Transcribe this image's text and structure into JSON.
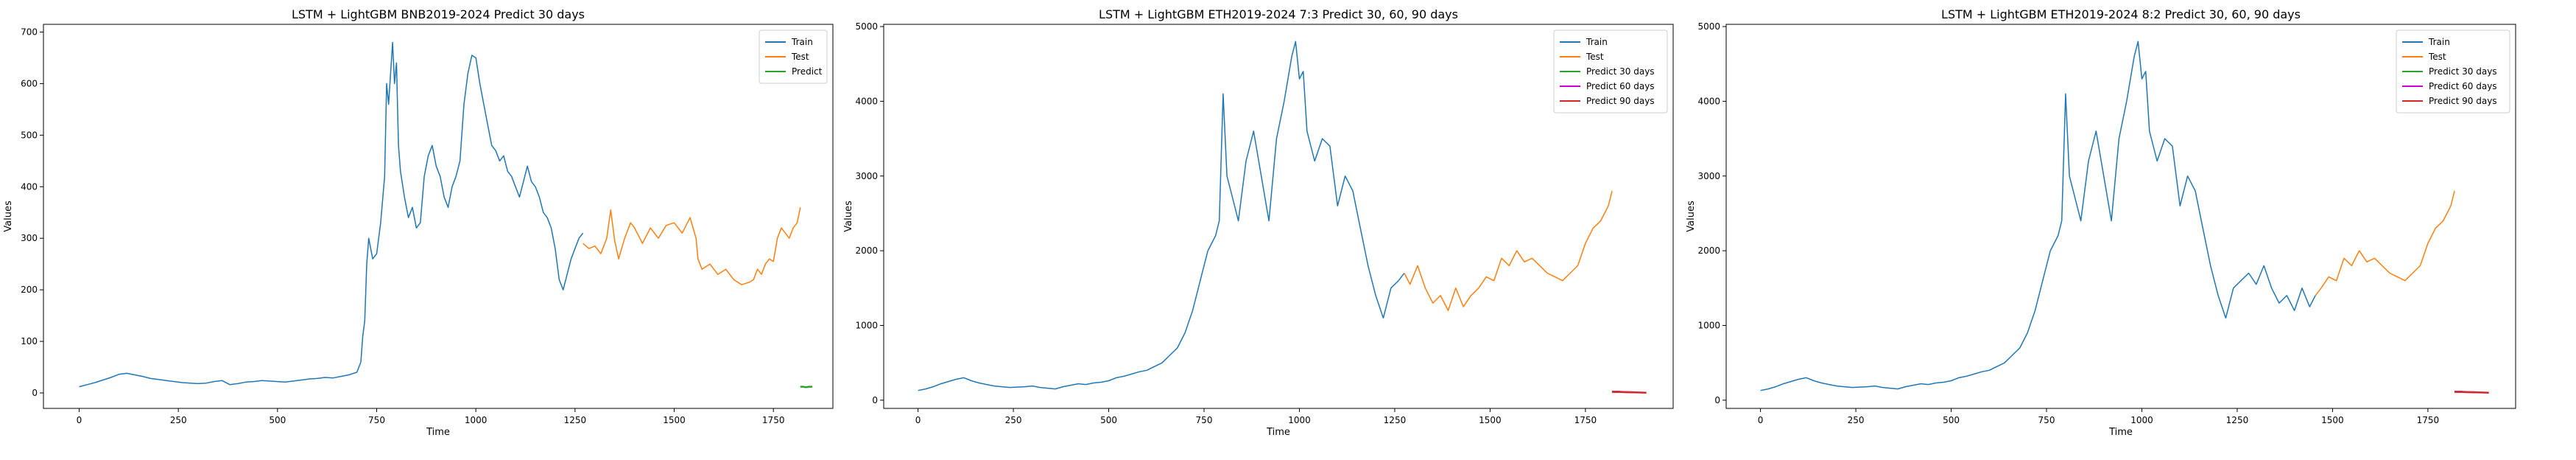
{
  "chart_data": [
    {
      "type": "line",
      "title": "LSTM + LightGBM BNB2019-2024 Predict 30 days",
      "xlabel": "Time",
      "ylabel": "Values",
      "xlim": [
        -90,
        1900
      ],
      "ylim": [
        -30,
        715
      ],
      "xticks": [
        0,
        250,
        500,
        750,
        1000,
        1250,
        1500,
        1750
      ],
      "yticks": [
        0,
        100,
        200,
        300,
        400,
        500,
        600,
        700
      ],
      "legend": "top-right",
      "series": [
        {
          "name": "Train",
          "color": "#1f77b4",
          "x": [
            0,
            20,
            40,
            60,
            80,
            100,
            120,
            140,
            160,
            180,
            200,
            220,
            240,
            260,
            280,
            300,
            320,
            340,
            360,
            380,
            400,
            420,
            440,
            460,
            480,
            500,
            520,
            540,
            560,
            580,
            600,
            620,
            640,
            660,
            680,
            700,
            710,
            715,
            720,
            725,
            730,
            740,
            750,
            760,
            770,
            775,
            780,
            790,
            795,
            800,
            805,
            810,
            820,
            830,
            840,
            850,
            860,
            870,
            880,
            890,
            900,
            910,
            920,
            930,
            940,
            950,
            960,
            970,
            980,
            990,
            1000,
            1010,
            1020,
            1030,
            1040,
            1050,
            1060,
            1070,
            1080,
            1090,
            1100,
            1110,
            1120,
            1130,
            1140,
            1150,
            1160,
            1170,
            1180,
            1190,
            1200,
            1210,
            1220,
            1230,
            1240,
            1250,
            1260,
            1270
          ],
          "y": [
            12,
            16,
            20,
            25,
            30,
            36,
            38,
            35,
            32,
            28,
            26,
            24,
            22,
            20,
            19,
            18,
            19,
            22,
            24,
            16,
            18,
            21,
            22,
            24,
            23,
            22,
            21,
            23,
            25,
            27,
            28,
            30,
            29,
            32,
            35,
            40,
            60,
            110,
            140,
            250,
            300,
            260,
            270,
            330,
            420,
            600,
            560,
            680,
            600,
            640,
            480,
            430,
            380,
            340,
            360,
            320,
            330,
            420,
            460,
            480,
            440,
            420,
            380,
            360,
            400,
            420,
            450,
            560,
            620,
            655,
            650,
            600,
            560,
            520,
            480,
            470,
            450,
            460,
            430,
            420,
            400,
            380,
            410,
            440,
            410,
            400,
            380,
            350,
            340,
            320,
            280,
            220,
            200,
            230,
            260,
            280,
            300,
            310
          ]
        },
        {
          "name": "Test",
          "color": "#ff7f0e",
          "x": [
            1270,
            1285,
            1300,
            1315,
            1330,
            1340,
            1350,
            1360,
            1375,
            1390,
            1400,
            1420,
            1440,
            1460,
            1480,
            1500,
            1520,
            1540,
            1555,
            1560,
            1570,
            1590,
            1610,
            1630,
            1650,
            1670,
            1690,
            1700,
            1710,
            1720,
            1730,
            1740,
            1750,
            1760,
            1770,
            1780,
            1790,
            1800,
            1810,
            1818
          ],
          "y": [
            290,
            280,
            285,
            270,
            300,
            355,
            295,
            260,
            300,
            330,
            320,
            290,
            320,
            300,
            325,
            330,
            310,
            340,
            300,
            260,
            240,
            250,
            230,
            240,
            220,
            210,
            215,
            220,
            240,
            230,
            250,
            260,
            255,
            300,
            320,
            310,
            300,
            320,
            330,
            360
          ]
        },
        {
          "name": "Predict",
          "color": "#2ca02c",
          "x": [
            1818,
            1825,
            1832,
            1840,
            1848
          ],
          "y": [
            12,
            12,
            11,
            12,
            12
          ]
        }
      ]
    },
    {
      "type": "line",
      "title": "LSTM + LightGBM ETH2019-2024 7:3 Predict 30, 60, 90 days",
      "xlabel": "Time",
      "ylabel": "Values",
      "xlim": [
        -90,
        1980
      ],
      "ylim": [
        -110,
        5030
      ],
      "xticks": [
        0,
        250,
        500,
        750,
        1000,
        1250,
        1500,
        1750
      ],
      "yticks": [
        0,
        1000,
        2000,
        3000,
        4000,
        5000
      ],
      "legend": "top-right",
      "series": [
        {
          "name": "Train",
          "color": "#1f77b4",
          "x": [
            0,
            20,
            40,
            60,
            80,
            100,
            120,
            140,
            160,
            180,
            200,
            220,
            240,
            260,
            280,
            300,
            320,
            340,
            360,
            380,
            400,
            420,
            440,
            460,
            480,
            500,
            520,
            540,
            560,
            580,
            600,
            620,
            640,
            660,
            680,
            700,
            720,
            740,
            760,
            780,
            790,
            800,
            810,
            820,
            840,
            860,
            880,
            900,
            920,
            940,
            960,
            980,
            990,
            1000,
            1010,
            1020,
            1040,
            1060,
            1080,
            1100,
            1120,
            1140,
            1160,
            1180,
            1200,
            1220,
            1240,
            1260,
            1275
          ],
          "y": [
            130,
            150,
            180,
            220,
            250,
            280,
            300,
            260,
            230,
            210,
            190,
            180,
            170,
            175,
            180,
            190,
            170,
            160,
            150,
            180,
            200,
            220,
            210,
            230,
            240,
            260,
            300,
            320,
            350,
            380,
            400,
            450,
            500,
            600,
            700,
            900,
            1200,
            1600,
            2000,
            2200,
            2400,
            4100,
            3000,
            2800,
            2400,
            3200,
            3600,
            3000,
            2400,
            3500,
            4000,
            4600,
            4800,
            4300,
            4400,
            3600,
            3200,
            3500,
            3400,
            2600,
            3000,
            2800,
            2300,
            1800,
            1400,
            1100,
            1500,
            1600,
            1700
          ]
        },
        {
          "name": "Test",
          "color": "#ff7f0e",
          "x": [
            1275,
            1290,
            1310,
            1330,
            1350,
            1370,
            1390,
            1410,
            1430,
            1450,
            1470,
            1490,
            1510,
            1530,
            1550,
            1570,
            1590,
            1610,
            1630,
            1650,
            1670,
            1690,
            1710,
            1730,
            1750,
            1770,
            1790,
            1810,
            1820
          ],
          "y": [
            1700,
            1550,
            1800,
            1500,
            1300,
            1400,
            1200,
            1500,
            1250,
            1400,
            1500,
            1650,
            1600,
            1900,
            1800,
            2000,
            1850,
            1900,
            1800,
            1700,
            1650,
            1600,
            1700,
            1800,
            2100,
            2300,
            2400,
            2600,
            2800
          ]
        },
        {
          "name": "Predict 30 days",
          "color": "#2ca02c",
          "x": [
            1820,
            1835,
            1850
          ],
          "y": [
            110,
            115,
            108
          ]
        },
        {
          "name": "Predict 60 days",
          "color": "#cc00cc",
          "x": [
            1820,
            1845,
            1880
          ],
          "y": [
            115,
            110,
            105
          ]
        },
        {
          "name": "Predict 90 days",
          "color": "#d62728",
          "x": [
            1820,
            1850,
            1880,
            1910
          ],
          "y": [
            112,
            108,
            104,
            100
          ]
        }
      ]
    },
    {
      "type": "line",
      "title": "LSTM + LightGBM ETH2019-2024 8:2 Predict 30, 60, 90 days",
      "xlabel": "Time",
      "ylabel": "Values",
      "xlim": [
        -90,
        1980
      ],
      "ylim": [
        -110,
        5030
      ],
      "xticks": [
        0,
        250,
        500,
        750,
        1000,
        1250,
        1500,
        1750
      ],
      "yticks": [
        0,
        1000,
        2000,
        3000,
        4000,
        5000
      ],
      "legend": "top-right",
      "series": [
        {
          "name": "Train",
          "color": "#1f77b4",
          "x": [
            0,
            20,
            40,
            60,
            80,
            100,
            120,
            140,
            160,
            180,
            200,
            220,
            240,
            260,
            280,
            300,
            320,
            340,
            360,
            380,
            400,
            420,
            440,
            460,
            480,
            500,
            520,
            540,
            560,
            580,
            600,
            620,
            640,
            660,
            680,
            700,
            720,
            740,
            760,
            780,
            790,
            800,
            810,
            820,
            840,
            860,
            880,
            900,
            920,
            940,
            960,
            980,
            990,
            1000,
            1010,
            1020,
            1040,
            1060,
            1080,
            1100,
            1120,
            1140,
            1160,
            1180,
            1200,
            1220,
            1240,
            1260,
            1280,
            1300,
            1320,
            1340,
            1360,
            1380,
            1400,
            1420,
            1440,
            1455
          ],
          "y": [
            130,
            150,
            180,
            220,
            250,
            280,
            300,
            260,
            230,
            210,
            190,
            180,
            170,
            175,
            180,
            190,
            170,
            160,
            150,
            180,
            200,
            220,
            210,
            230,
            240,
            260,
            300,
            320,
            350,
            380,
            400,
            450,
            500,
            600,
            700,
            900,
            1200,
            1600,
            2000,
            2200,
            2400,
            4100,
            3000,
            2800,
            2400,
            3200,
            3600,
            3000,
            2400,
            3500,
            4000,
            4600,
            4800,
            4300,
            4400,
            3600,
            3200,
            3500,
            3400,
            2600,
            3000,
            2800,
            2300,
            1800,
            1400,
            1100,
            1500,
            1600,
            1700,
            1550,
            1800,
            1500,
            1300,
            1400,
            1200,
            1500,
            1250,
            1400
          ]
        },
        {
          "name": "Test",
          "color": "#ff7f0e",
          "x": [
            1455,
            1470,
            1490,
            1510,
            1530,
            1550,
            1570,
            1590,
            1610,
            1630,
            1650,
            1670,
            1690,
            1710,
            1730,
            1750,
            1770,
            1790,
            1810,
            1820
          ],
          "y": [
            1400,
            1500,
            1650,
            1600,
            1900,
            1800,
            2000,
            1850,
            1900,
            1800,
            1700,
            1650,
            1600,
            1700,
            1800,
            2100,
            2300,
            2400,
            2600,
            2800
          ]
        },
        {
          "name": "Predict 30 days",
          "color": "#2ca02c",
          "x": [
            1820,
            1835,
            1850
          ],
          "y": [
            110,
            115,
            108
          ]
        },
        {
          "name": "Predict 60 days",
          "color": "#cc00cc",
          "x": [
            1820,
            1845,
            1880
          ],
          "y": [
            115,
            110,
            105
          ]
        },
        {
          "name": "Predict 90 days",
          "color": "#d62728",
          "x": [
            1820,
            1850,
            1880,
            1910
          ],
          "y": [
            112,
            108,
            104,
            100
          ]
        }
      ]
    }
  ]
}
